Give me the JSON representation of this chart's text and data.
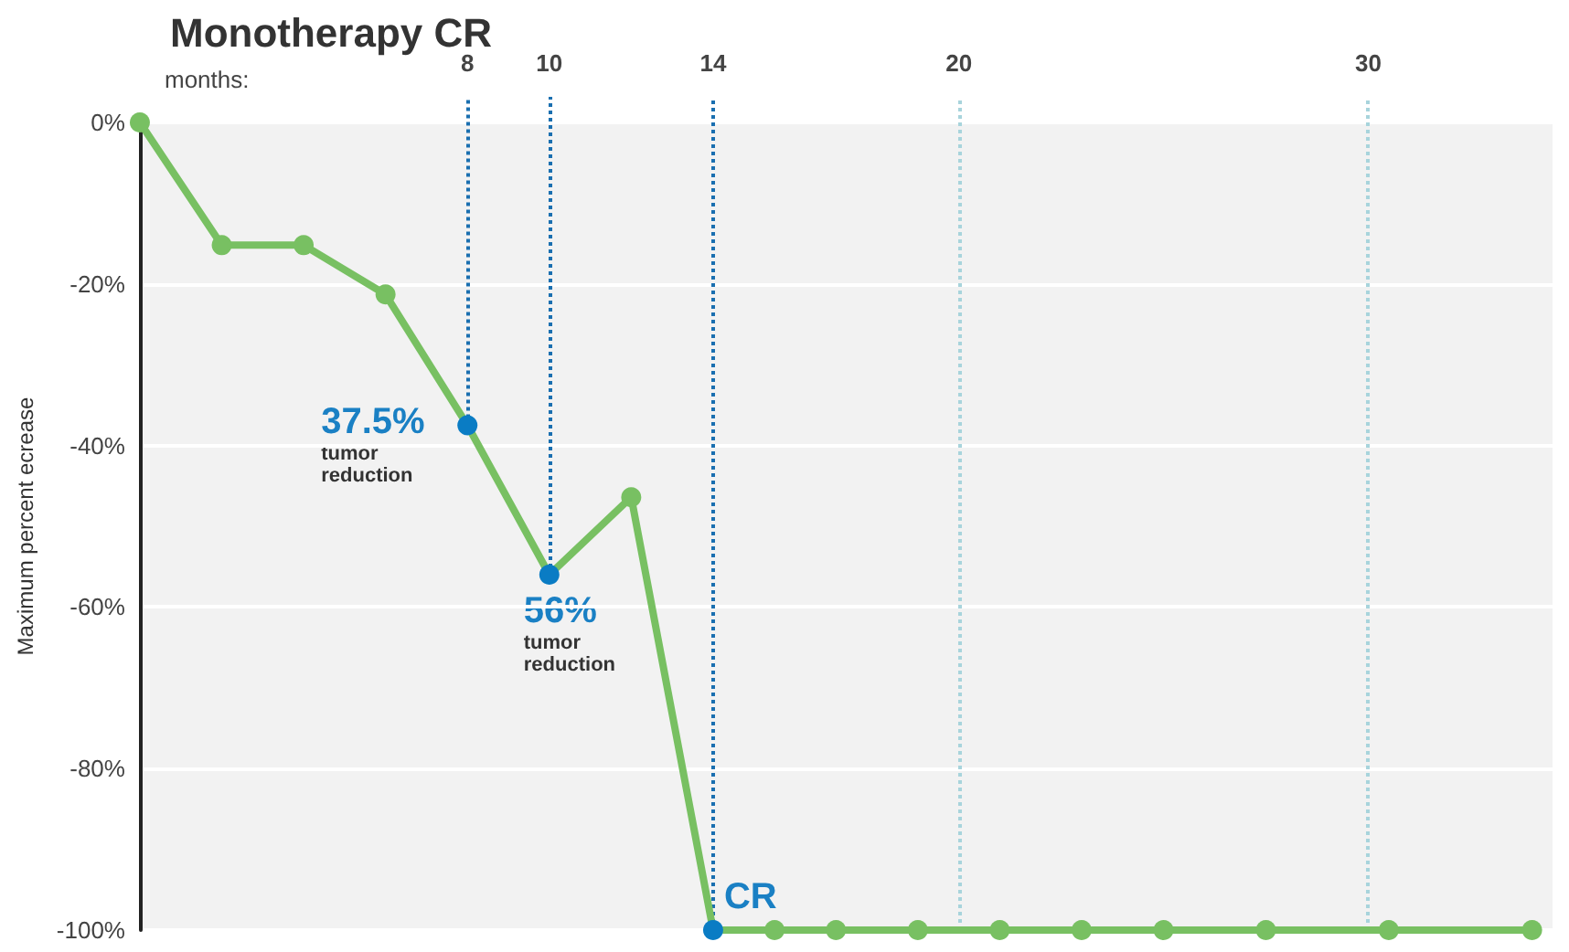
{
  "chart_data": {
    "type": "line",
    "title": "Monotherapy CR",
    "ylabel": "Maximum percent ecrease",
    "x": [
      0,
      2,
      4,
      6,
      8,
      10,
      12,
      14,
      15.5,
      17,
      19,
      21,
      23,
      25,
      27.5,
      30.5,
      34
    ],
    "series": [
      {
        "color": "#78c062",
        "colors": [
          "#78c062",
          "#78c062",
          "#78c062",
          "#78c062",
          "#0a7cc4",
          "#0a7cc4",
          "#78c062",
          "#0a7cc4",
          "#78c062",
          "#78c062",
          "#78c062",
          "#78c062",
          "#78c062",
          "#78c062",
          "#78c062",
          "#78c062",
          "#78c062"
        ],
        "values": [
          0,
          -15.2,
          -15.2,
          -21.3,
          -37.5,
          -56,
          -46.4,
          -100,
          -100,
          -100,
          -100,
          -100,
          -100,
          -100,
          -100,
          -100,
          -100
        ]
      }
    ],
    "xlim": [
      0,
      34.5
    ],
    "xticks": [
      8,
      10,
      14,
      20,
      30
    ],
    "ylim": [
      -100,
      0
    ],
    "yticks": [
      {
        "value": -100,
        "label": "-100%"
      },
      {
        "value": -80,
        "label": "-80%"
      },
      {
        "value": -60,
        "label": "-60%"
      },
      {
        "value": -40,
        "label": "-40%"
      },
      {
        "value": -20,
        "label": "-20%"
      },
      {
        "value": 0,
        "label": "0%"
      }
    ],
    "grid": "y",
    "marker": "circle",
    "line_style": "solid",
    "ref_lines": [
      {
        "axis": "x",
        "value": 8,
        "color": "#1a6fb0",
        "line_style": "dotted"
      },
      {
        "axis": "x",
        "value": 10,
        "color": "#1a6fb0",
        "line_style": "dotted"
      },
      {
        "axis": "x",
        "value": 14,
        "color": "#1a6fb0",
        "line_style": "dotted"
      },
      {
        "axis": "x",
        "value": 20,
        "color": "#a8d4dc",
        "line_style": "dotted"
      },
      {
        "axis": "x",
        "value": 30,
        "color": "#a8d4dc",
        "line_style": "dotted"
      }
    ],
    "annotations": [
      "months:",
      {
        "text": "37.5% tumor reduction",
        "x": 8,
        "y": -37.5
      },
      {
        "text": "56% tumor reduction",
        "x": 10,
        "y": -56
      },
      {
        "text": "CR",
        "x": 14,
        "y": -100
      }
    ]
  }
}
